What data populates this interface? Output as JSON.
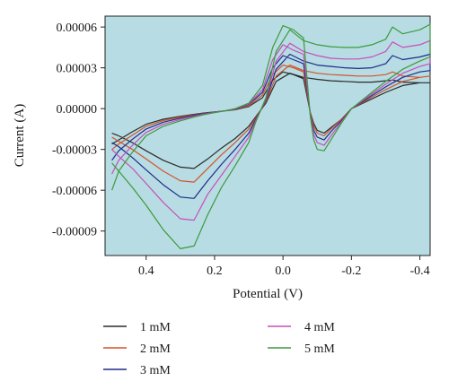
{
  "chart_data": {
    "type": "line",
    "title": "",
    "xlabel": "Potential (V)",
    "ylabel": "Current (A)",
    "xlim": [
      0.52,
      -0.43
    ],
    "ylim": [
      -0.000108,
      6.8e-05
    ],
    "x_ticks": [
      0.4,
      0.2,
      0.0,
      -0.2,
      -0.4
    ],
    "x_tick_labels": [
      "0.4",
      "0.2",
      "0.0",
      "-0.2",
      "-0.4"
    ],
    "y_ticks": [
      6e-05,
      3e-05,
      0.0,
      -3e-05,
      -6e-05,
      -9e-05
    ],
    "y_tick_labels": [
      "0.00006",
      "0.00003",
      "0.00000",
      "-0.00003",
      "-0.00006",
      "-0.00009"
    ],
    "plot_background": "#b7dce3",
    "grid": false,
    "legend_position": "bottom",
    "series": [
      {
        "name": "1 mM",
        "color": "#2b2b2b",
        "x": [
          0.5,
          0.48,
          0.44,
          0.4,
          0.35,
          0.3,
          0.26,
          0.23,
          0.2,
          0.17,
          0.14,
          0.1,
          0.06,
          0.03,
          0.0,
          -0.03,
          -0.06,
          -0.08,
          -0.09,
          -0.1,
          -0.12,
          -0.14,
          -0.17,
          -0.2,
          -0.25,
          -0.3,
          -0.35,
          -0.4,
          -0.43,
          -0.43,
          -0.4,
          -0.35,
          -0.32,
          -0.3,
          -0.26,
          -0.22,
          -0.18,
          -0.14,
          -0.1,
          -0.06,
          -0.02,
          0.02,
          0.05,
          0.08,
          0.1,
          0.14,
          0.18,
          0.22,
          0.26,
          0.3,
          0.35,
          0.4,
          0.44,
          0.48,
          0.5
        ],
        "y": [
          -2.6e-05,
          -2.3e-05,
          -1.7e-05,
          -1.15e-05,
          -7.8e-06,
          -5.6e-06,
          -4.2e-06,
          -3.2e-06,
          -2.4e-06,
          -1.7e-06,
          -8e-07,
          1.5e-06,
          8e-06,
          2.1e-05,
          2.7e-05,
          2.5e-05,
          2.2e-05,
          -3e-06,
          -1.1e-05,
          -1.6e-05,
          -1.8e-05,
          -1.4e-05,
          -8e-06,
          0.0,
          6e-06,
          1.2e-05,
          1.7e-05,
          1.9e-05,
          1.9e-05,
          1.9e-05,
          1.9e-05,
          1.95e-05,
          2.1e-05,
          2.05e-05,
          1.95e-05,
          1.95e-05,
          2e-05,
          2.05e-05,
          2.15e-05,
          2.3e-05,
          2.6e-05,
          2e-05,
          4e-06,
          -6e-06,
          -1.3e-05,
          -2.2e-05,
          -2.9e-05,
          -3.7e-05,
          -4.4e-05,
          -4.3e-05,
          -3.8e-05,
          -3.1e-05,
          -2.5e-05,
          -2e-05,
          -1.8e-05
        ]
      },
      {
        "name": "2 mM",
        "color": "#d2542c",
        "x": [
          0.5,
          0.48,
          0.44,
          0.4,
          0.35,
          0.3,
          0.26,
          0.23,
          0.2,
          0.17,
          0.14,
          0.1,
          0.06,
          0.03,
          0.0,
          -0.03,
          -0.06,
          -0.08,
          -0.09,
          -0.1,
          -0.12,
          -0.14,
          -0.17,
          -0.2,
          -0.25,
          -0.3,
          -0.35,
          -0.4,
          -0.43,
          -0.43,
          -0.4,
          -0.35,
          -0.32,
          -0.3,
          -0.26,
          -0.22,
          -0.18,
          -0.14,
          -0.1,
          -0.06,
          -0.02,
          0.02,
          0.05,
          0.08,
          0.1,
          0.14,
          0.18,
          0.22,
          0.26,
          0.3,
          0.35,
          0.4,
          0.44,
          0.48,
          0.5
        ],
        "y": [
          -3e-05,
          -2.6e-05,
          -1.95e-05,
          -1.3e-05,
          -8.8e-06,
          -6.2e-06,
          -4.6e-06,
          -3.4e-06,
          -2.5e-06,
          -1.7e-06,
          -6e-07,
          2e-06,
          1e-05,
          2.5e-05,
          3.2e-05,
          3e-05,
          2.7e-05,
          -3e-06,
          -1.3e-05,
          -1.8e-05,
          -2e-05,
          -1.5e-05,
          -8e-06,
          0.0,
          7e-06,
          1.4e-05,
          2e-05,
          2.3e-05,
          2.4e-05,
          2.4e-05,
          2.3e-05,
          2.4e-05,
          2.7e-05,
          2.5e-05,
          2.4e-05,
          2.4e-05,
          2.45e-05,
          2.5e-05,
          2.6e-05,
          2.8e-05,
          3.2e-05,
          2.4e-05,
          5e-06,
          -7e-06,
          -1.5e-05,
          -2.5e-05,
          -3.4e-05,
          -4.4e-05,
          -5.4e-05,
          -5.3e-05,
          -4.6e-05,
          -3.7e-05,
          -3e-05,
          -2.4e-05,
          -2.1e-05
        ]
      },
      {
        "name": "3 mM",
        "color": "#1f2a8c",
        "x": [
          0.5,
          0.48,
          0.44,
          0.4,
          0.35,
          0.3,
          0.26,
          0.23,
          0.2,
          0.17,
          0.14,
          0.1,
          0.06,
          0.03,
          0.0,
          -0.03,
          -0.06,
          -0.08,
          -0.09,
          -0.1,
          -0.12,
          -0.14,
          -0.17,
          -0.2,
          -0.25,
          -0.3,
          -0.35,
          -0.4,
          -0.43,
          -0.43,
          -0.4,
          -0.35,
          -0.32,
          -0.3,
          -0.26,
          -0.22,
          -0.18,
          -0.14,
          -0.1,
          -0.06,
          -0.02,
          0.02,
          0.05,
          0.08,
          0.1,
          0.14,
          0.18,
          0.22,
          0.26,
          0.3,
          0.35,
          0.4,
          0.44,
          0.48,
          0.5
        ],
        "y": [
          -3.8e-05,
          -3.1e-05,
          -2.25e-05,
          -1.5e-05,
          -1e-05,
          -7e-06,
          -5e-06,
          -3.6e-06,
          -2.6e-06,
          -1.6e-06,
          -4e-07,
          3e-06,
          1.2e-05,
          3e-05,
          3.9e-05,
          3.6e-05,
          3.3e-05,
          -4e-06,
          -1.6e-05,
          -2.1e-05,
          -2.3e-05,
          -1.7e-05,
          -9e-06,
          0.0,
          8e-06,
          1.6e-05,
          2.3e-05,
          2.7e-05,
          2.8e-05,
          4e-05,
          3.8e-05,
          3.6e-05,
          3.9e-05,
          3.3e-05,
          3e-05,
          2.95e-05,
          3e-05,
          3.1e-05,
          3.2e-05,
          3.5e-05,
          4e-05,
          2.9e-05,
          6e-06,
          -8e-06,
          -1.8e-05,
          -3e-05,
          -4.1e-05,
          -5.3e-05,
          -6.6e-05,
          -6.5e-05,
          -5.6e-05,
          -4.5e-05,
          -3.6e-05,
          -2.8e-05,
          -2.5e-05
        ]
      },
      {
        "name": "4 mM",
        "color": "#c64fb8",
        "x": [
          0.5,
          0.48,
          0.44,
          0.4,
          0.35,
          0.3,
          0.26,
          0.23,
          0.2,
          0.17,
          0.14,
          0.1,
          0.06,
          0.03,
          0.0,
          -0.03,
          -0.06,
          -0.08,
          -0.09,
          -0.1,
          -0.12,
          -0.14,
          -0.17,
          -0.2,
          -0.25,
          -0.3,
          -0.35,
          -0.4,
          -0.43,
          -0.43,
          -0.4,
          -0.35,
          -0.32,
          -0.3,
          -0.26,
          -0.22,
          -0.18,
          -0.14,
          -0.1,
          -0.06,
          -0.02,
          0.02,
          0.05,
          0.08,
          0.1,
          0.14,
          0.18,
          0.22,
          0.26,
          0.3,
          0.35,
          0.4,
          0.44,
          0.48,
          0.5
        ],
        "y": [
          -4.8e-05,
          -3.8e-05,
          -2.7e-05,
          -1.75e-05,
          -1.15e-05,
          -8e-06,
          -5.6e-06,
          -4e-06,
          -2.8e-06,
          -1.6e-06,
          -2e-07,
          3.5e-06,
          1.4e-05,
          3.6e-05,
          4.7e-05,
          4.3e-05,
          4e-05,
          -5e-06,
          -1.9e-05,
          -2.5e-05,
          -2.7e-05,
          -2e-05,
          -1e-05,
          0.0,
          9e-06,
          1.8e-05,
          2.6e-05,
          3.1e-05,
          3.3e-05,
          5e-05,
          4.7e-05,
          4.5e-05,
          4.9e-05,
          4.2e-05,
          3.8e-05,
          3.65e-05,
          3.65e-05,
          3.7e-05,
          3.9e-05,
          4.2e-05,
          4.8e-05,
          3.5e-05,
          7e-06,
          -9e-06,
          -2.1e-05,
          -3.5e-05,
          -4.9e-05,
          -6.3e-05,
          -8.2e-05,
          -8.1e-05,
          -6.9e-05,
          -5.5e-05,
          -4.4e-05,
          -3.5e-05,
          -3e-05
        ]
      },
      {
        "name": "5 mM",
        "color": "#3c9a3a",
        "x": [
          0.5,
          0.48,
          0.44,
          0.4,
          0.35,
          0.3,
          0.26,
          0.23,
          0.2,
          0.17,
          0.14,
          0.1,
          0.06,
          0.03,
          0.0,
          -0.03,
          -0.06,
          -0.08,
          -0.09,
          -0.1,
          -0.12,
          -0.14,
          -0.17,
          -0.2,
          -0.25,
          -0.3,
          -0.35,
          -0.4,
          -0.43,
          -0.43,
          -0.4,
          -0.35,
          -0.32,
          -0.3,
          -0.26,
          -0.22,
          -0.18,
          -0.14,
          -0.1,
          -0.06,
          -0.02,
          0.02,
          0.05,
          0.08,
          0.1,
          0.14,
          0.18,
          0.22,
          0.26,
          0.3,
          0.35,
          0.4,
          0.44,
          0.48,
          0.5
        ],
        "y": [
          -6e-05,
          -4.6e-05,
          -3.2e-05,
          -2e-05,
          -1.3e-05,
          -9e-06,
          -6.2e-06,
          -4.4e-06,
          -3e-06,
          -1.6e-06,
          0.0,
          4e-06,
          1.7e-05,
          4.5e-05,
          6.1e-05,
          5.8e-05,
          5.2e-05,
          -6e-06,
          -2.3e-05,
          -3e-05,
          -3.1e-05,
          -2.3e-05,
          -1.1e-05,
          0.0,
          1e-05,
          2e-05,
          2.9e-05,
          3.5e-05,
          3.8e-05,
          6.2e-05,
          5.8e-05,
          5.5e-05,
          6e-05,
          5.1e-05,
          4.7e-05,
          4.5e-05,
          4.5e-05,
          4.55e-05,
          4.7e-05,
          5e-05,
          5.8e-05,
          4.2e-05,
          8e-06,
          -1e-05,
          -2.5e-05,
          -4.2e-05,
          -5.8e-05,
          -7.8e-05,
          -0.000101,
          -0.000103,
          -8.9e-05,
          -7.1e-05,
          -5.8e-05,
          -4.6e-05,
          -4e-05
        ]
      }
    ]
  }
}
